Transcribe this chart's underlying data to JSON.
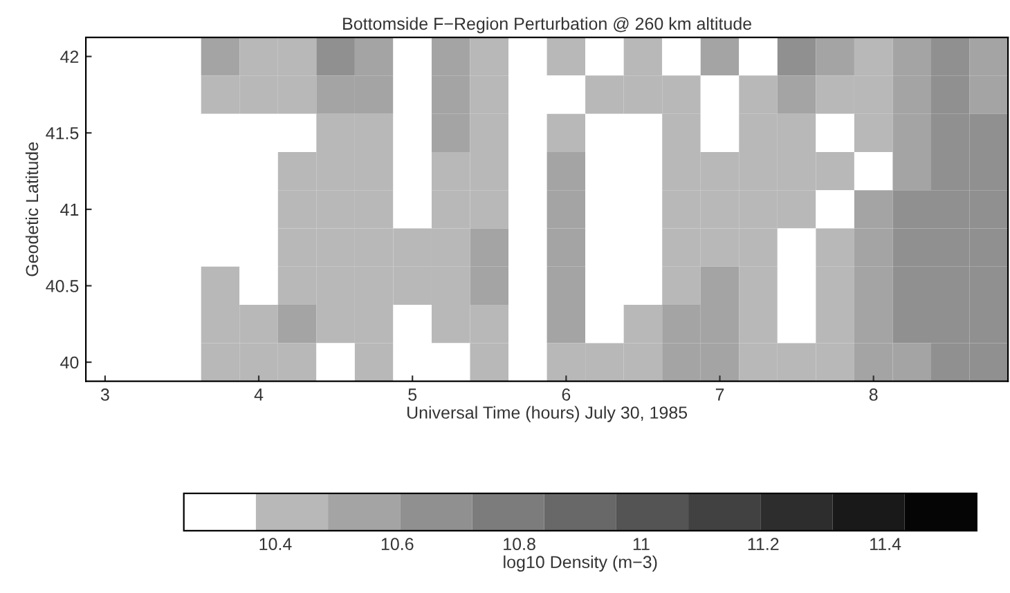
{
  "chart_data": {
    "type": "heatmap",
    "title": "Bottomside F−Region Perturbation @ 260 km altitude",
    "xlabel": "Universal Time (hours) July 30, 1985",
    "ylabel": "Geodetic Latitude",
    "clabel": "log10 Density (m−3)",
    "categories": [
      "3",
      null,
      null,
      null,
      "4",
      null,
      null,
      null,
      "5",
      null,
      null,
      null,
      "6",
      null,
      null,
      null,
      "7",
      null,
      null,
      null,
      "8",
      null,
      null,
      null
    ],
    "y_categories": [
      "42",
      null,
      "41.5",
      null,
      "41",
      null,
      "40.5",
      null,
      "40"
    ],
    "clim": [
      10.25,
      11.55
    ],
    "cticks": [
      10.4,
      10.6,
      10.8,
      11,
      11.2,
      11.4
    ],
    "cells": [
      [
        null,
        null,
        null,
        10.54,
        10.42,
        10.42,
        10.66,
        10.54,
        10.3,
        10.54,
        10.42,
        10.3,
        10.42,
        10.3,
        10.42,
        10.3,
        10.54,
        10.3,
        10.66,
        10.54,
        10.42,
        10.54,
        10.66,
        10.54
      ],
      [
        null,
        null,
        null,
        10.42,
        10.42,
        10.42,
        10.54,
        10.54,
        10.3,
        10.54,
        10.42,
        10.3,
        10.3,
        10.42,
        10.42,
        10.42,
        10.3,
        10.42,
        10.54,
        10.42,
        10.42,
        10.54,
        10.66,
        10.54
      ],
      [
        null,
        null,
        null,
        10.3,
        10.3,
        10.3,
        10.42,
        10.42,
        10.3,
        10.54,
        10.42,
        10.3,
        10.42,
        10.3,
        10.3,
        10.42,
        10.3,
        10.42,
        10.42,
        10.3,
        10.42,
        10.54,
        10.66,
        10.66
      ],
      [
        null,
        null,
        null,
        10.3,
        10.3,
        10.42,
        10.42,
        10.42,
        10.3,
        10.42,
        10.42,
        10.3,
        10.54,
        10.3,
        10.3,
        10.42,
        10.42,
        10.42,
        10.42,
        10.42,
        10.3,
        10.54,
        10.66,
        10.66
      ],
      [
        null,
        null,
        null,
        10.3,
        10.3,
        10.42,
        10.42,
        10.42,
        10.3,
        10.42,
        10.42,
        10.3,
        10.54,
        10.3,
        10.3,
        10.42,
        10.42,
        10.42,
        10.42,
        10.3,
        10.54,
        10.66,
        10.66,
        10.66
      ],
      [
        null,
        null,
        null,
        10.3,
        10.3,
        10.42,
        10.42,
        10.42,
        10.42,
        10.42,
        10.54,
        10.3,
        10.54,
        10.3,
        10.3,
        10.42,
        10.42,
        10.42,
        10.3,
        10.42,
        10.54,
        10.66,
        10.66,
        10.66
      ],
      [
        null,
        null,
        null,
        10.42,
        10.3,
        10.42,
        10.42,
        10.42,
        10.42,
        10.42,
        10.54,
        10.3,
        10.54,
        10.3,
        10.3,
        10.42,
        10.54,
        10.42,
        10.3,
        10.42,
        10.54,
        10.66,
        10.66,
        10.66
      ],
      [
        null,
        null,
        null,
        10.42,
        10.42,
        10.54,
        10.42,
        10.42,
        10.3,
        10.42,
        10.42,
        10.3,
        10.54,
        10.3,
        10.42,
        10.54,
        10.54,
        10.42,
        10.3,
        10.42,
        10.54,
        10.66,
        10.66,
        10.66
      ],
      [
        null,
        null,
        null,
        10.42,
        10.42,
        10.42,
        10.3,
        10.42,
        10.3,
        10.3,
        10.42,
        10.3,
        10.42,
        10.42,
        10.42,
        10.54,
        10.54,
        10.42,
        10.42,
        10.42,
        10.54,
        10.54,
        10.66,
        10.66
      ]
    ]
  }
}
